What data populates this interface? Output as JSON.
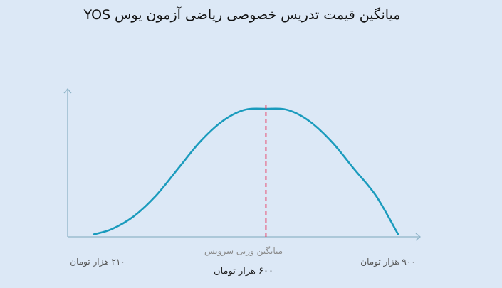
{
  "chart_data": {
    "type": "line",
    "title": "میانگین قیمت تدریس خصوصی ریاضی آزمون یوس YOS",
    "x_min_label": "۲۱۰ هزار تومان",
    "x_max_label": "۹۰۰ هزار تومان",
    "mean_caption": "میانگین وزنی سرویس",
    "mean_value_label": "۶۰۰ هزار تومان",
    "xlim": [
      150,
      950
    ],
    "ylim": [
      0,
      1.15
    ],
    "mean": 600,
    "series": [
      {
        "x": [
          210,
          250,
          300,
          350,
          400,
          450,
          500,
          550,
          600,
          650,
          700,
          750,
          800,
          850,
          900
        ],
        "values": [
          0.02,
          0.06,
          0.16,
          0.32,
          0.53,
          0.74,
          0.9,
          0.99,
          1.0,
          0.99,
          0.9,
          0.74,
          0.53,
          0.32,
          0.02
        ]
      }
    ],
    "colors": {
      "curve": "#1a9bbd",
      "mean_line": "#e8325a",
      "axis": "#8fb4c8"
    }
  }
}
